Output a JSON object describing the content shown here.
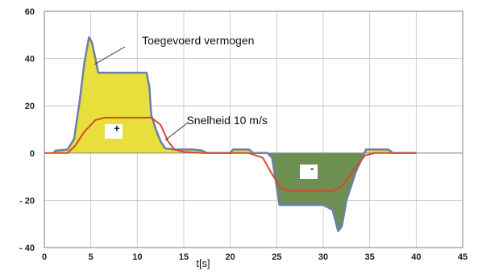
{
  "chart_data": {
    "type": "area",
    "xlabel": "t[s]",
    "xlim": [
      0,
      45
    ],
    "ylim": [
      -40,
      60
    ],
    "x_ticks": [
      0,
      5,
      10,
      15,
      20,
      25,
      30,
      35,
      40,
      45
    ],
    "y_ticks": [
      {
        "value": 60,
        "label": "60"
      },
      {
        "value": 40,
        "label": "40"
      },
      {
        "value": 20,
        "label": "20"
      },
      {
        "value": 0,
        "label": "0"
      },
      {
        "value": -20,
        "label": "- 20"
      },
      {
        "value": -40,
        "label": "- 40"
      }
    ],
    "grid": true,
    "colors": {
      "power_line": "#6b7fa8",
      "positive_fill": "#e8de3c",
      "negative_fill": "#6e8f52",
      "speed_line": "#d44a2a",
      "grid": "#bfbfbf",
      "plot_border": "#7a7aa8"
    },
    "series": [
      {
        "name": "Toegevoerd vermogen",
        "points": [
          [
            1,
            0
          ],
          [
            1.2,
            1
          ],
          [
            2.5,
            1.5
          ],
          [
            3.2,
            6
          ],
          [
            3.8,
            22
          ],
          [
            4.3,
            38
          ],
          [
            4.8,
            49
          ],
          [
            5.1,
            47
          ],
          [
            5.5,
            40
          ],
          [
            5.8,
            34
          ],
          [
            10,
            34
          ],
          [
            11,
            34
          ],
          [
            11.3,
            28
          ],
          [
            11.5,
            16
          ],
          [
            12,
            10
          ],
          [
            12.5,
            5
          ],
          [
            13,
            2
          ],
          [
            14,
            1.5
          ],
          [
            16,
            1.5
          ],
          [
            17,
            1
          ],
          [
            17.5,
            0
          ],
          [
            20,
            0
          ],
          [
            20.3,
            1.5
          ],
          [
            22,
            1.5
          ],
          [
            22.5,
            0
          ],
          [
            24,
            0
          ],
          [
            24.5,
            -2
          ],
          [
            25.3,
            -22
          ],
          [
            30,
            -22
          ],
          [
            31,
            -24
          ],
          [
            31.6,
            -33
          ],
          [
            32,
            -31
          ],
          [
            32.5,
            -20
          ],
          [
            33.5,
            -8
          ],
          [
            34.2,
            -2
          ],
          [
            34.6,
            1.5
          ],
          [
            37,
            1.5
          ],
          [
            37.5,
            0
          ],
          [
            40,
            0
          ]
        ]
      },
      {
        "name": "Snelheid 10 m/s",
        "points": [
          [
            0,
            0
          ],
          [
            2.5,
            0
          ],
          [
            3.3,
            3
          ],
          [
            4.3,
            9
          ],
          [
            5.5,
            14
          ],
          [
            6.5,
            15
          ],
          [
            11.5,
            15
          ],
          [
            12.5,
            12
          ],
          [
            13.3,
            5
          ],
          [
            14,
            1.5
          ],
          [
            15,
            0.5
          ],
          [
            17,
            0
          ],
          [
            22,
            0
          ],
          [
            23.5,
            -2
          ],
          [
            24.5,
            -9
          ],
          [
            25.5,
            -15
          ],
          [
            26.5,
            -16
          ],
          [
            31,
            -16
          ],
          [
            32,
            -14
          ],
          [
            33.5,
            -6
          ],
          [
            34.5,
            -1
          ],
          [
            35.5,
            0
          ],
          [
            40,
            0
          ]
        ]
      }
    ],
    "annotations": [
      {
        "text": "Toegevoerd vermogen",
        "x": 10.5,
        "y": 46
      },
      {
        "text": "Snelheid 10 m/s",
        "x": 15.3,
        "y": 12.3
      },
      {
        "text": "+",
        "x": 7.8,
        "y": 9
      },
      {
        "text": "-",
        "x": 28.8,
        "y": -8
      }
    ]
  }
}
